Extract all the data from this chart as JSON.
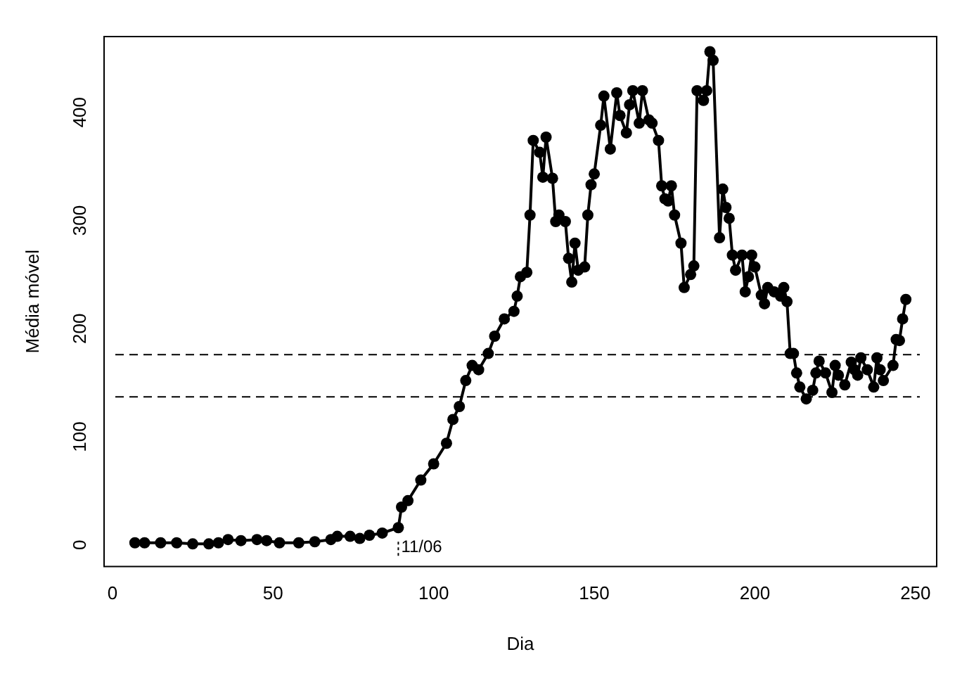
{
  "chart_data": {
    "type": "line",
    "xlabel": "Dia",
    "ylabel": "Média móvel",
    "x": [
      7,
      10,
      15,
      20,
      25,
      30,
      33,
      36,
      40,
      45,
      48,
      52,
      58,
      63,
      68,
      70,
      74,
      77,
      80,
      84,
      89,
      90,
      92,
      96,
      100,
      104,
      106,
      108,
      110,
      112,
      114,
      117,
      119,
      122,
      125,
      126,
      127,
      129,
      130,
      131,
      133,
      134,
      135,
      137,
      138,
      139,
      141,
      142,
      143,
      144,
      145,
      147,
      148,
      149,
      150,
      152,
      153,
      155,
      157,
      158,
      160,
      161,
      162,
      164,
      165,
      167,
      168,
      170,
      171,
      172,
      173,
      174,
      175,
      177,
      178,
      180,
      181,
      182,
      184,
      185,
      186,
      187,
      189,
      190,
      191,
      192,
      193,
      194,
      196,
      197,
      198,
      199,
      200,
      202,
      203,
      204,
      206,
      208,
      209,
      210,
      211,
      212,
      213,
      214,
      216,
      218,
      219,
      220,
      222,
      224,
      225,
      226,
      228,
      230,
      231,
      232,
      233,
      235,
      237,
      238,
      239,
      240,
      243,
      244,
      245,
      246,
      247
    ],
    "series": [
      {
        "color": "#000000",
        "values": [
          2,
          2,
          2,
          2,
          1,
          1,
          2,
          5,
          4,
          5,
          4,
          2,
          2,
          3,
          5,
          8,
          8,
          6,
          9,
          11,
          16,
          35,
          41,
          60,
          75,
          94,
          116,
          128,
          152,
          166,
          162,
          177,
          193,
          209,
          216,
          230,
          248,
          252,
          305,
          374,
          363,
          340,
          377,
          339,
          299,
          305,
          299,
          265,
          243,
          279,
          254,
          257,
          305,
          333,
          343,
          388,
          415,
          366,
          418,
          397,
          381,
          407,
          420,
          390,
          420,
          393,
          390,
          374,
          332,
          320,
          318,
          332,
          305,
          279,
          238,
          250,
          258,
          420,
          411,
          420,
          456,
          448,
          284,
          329,
          312,
          302,
          268,
          254,
          268,
          234,
          248,
          268,
          257,
          231,
          223,
          238,
          234,
          230,
          238,
          225,
          177,
          177,
          159,
          146,
          135,
          143,
          159,
          170,
          159,
          141,
          166,
          157,
          148,
          169,
          162,
          157,
          173,
          162,
          146,
          173,
          162,
          152,
          166,
          190,
          189,
          209,
          227
        ]
      }
    ],
    "xlim": [
      -2.6,
      256.6
    ],
    "ylim": [
      -20,
      470
    ],
    "xticks": [
      0,
      50,
      100,
      150,
      200,
      250
    ],
    "yticks": [
      0,
      100,
      200,
      300,
      400
    ],
    "ref_lines": [
      {
        "axis": "y",
        "value": 176,
        "color": "#000000",
        "line_style": "dashed"
      },
      {
        "axis": "y",
        "value": 137,
        "color": "#000000",
        "line_style": "dashed"
      }
    ],
    "annotations": [
      {
        "text": "11/06",
        "x": 89,
        "y": 16
      }
    ],
    "grid": false,
    "legend": false,
    "marker": "circle",
    "line_style": "solid"
  }
}
